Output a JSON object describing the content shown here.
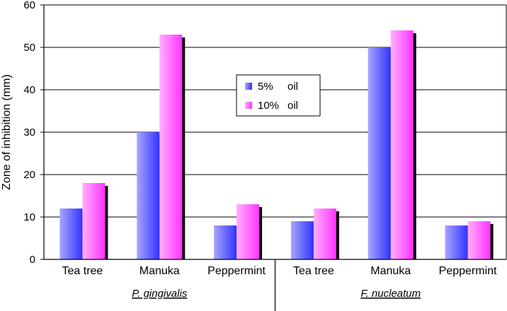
{
  "chart_data": {
    "type": "bar",
    "title": "",
    "xlabel": "",
    "ylabel": "Zone of inhibition (mm)",
    "ylim": [
      0,
      60
    ],
    "yticks": [
      0,
      10,
      20,
      30,
      40,
      50,
      60
    ],
    "grid": "horizontal",
    "legend_position": "center",
    "groups": [
      {
        "name": "P. gingivalis",
        "categories": [
          "Tea tree",
          "Manuka",
          "Peppermint"
        ]
      },
      {
        "name": "F. nucleatum",
        "categories": [
          "Tea tree",
          "Manuka",
          "Peppermint"
        ]
      }
    ],
    "series": [
      {
        "name": "5%",
        "name_suffix": "oil",
        "values": [
          12,
          30,
          8,
          9,
          50,
          8
        ],
        "color": "#3333ff",
        "gradient_light": "#a6a6ff"
      },
      {
        "name": "10%",
        "name_suffix": "oil",
        "values": [
          18,
          53,
          13,
          12,
          54,
          9
        ],
        "color": "#ff33ff",
        "gradient_light": "#ffb0ff"
      }
    ]
  }
}
